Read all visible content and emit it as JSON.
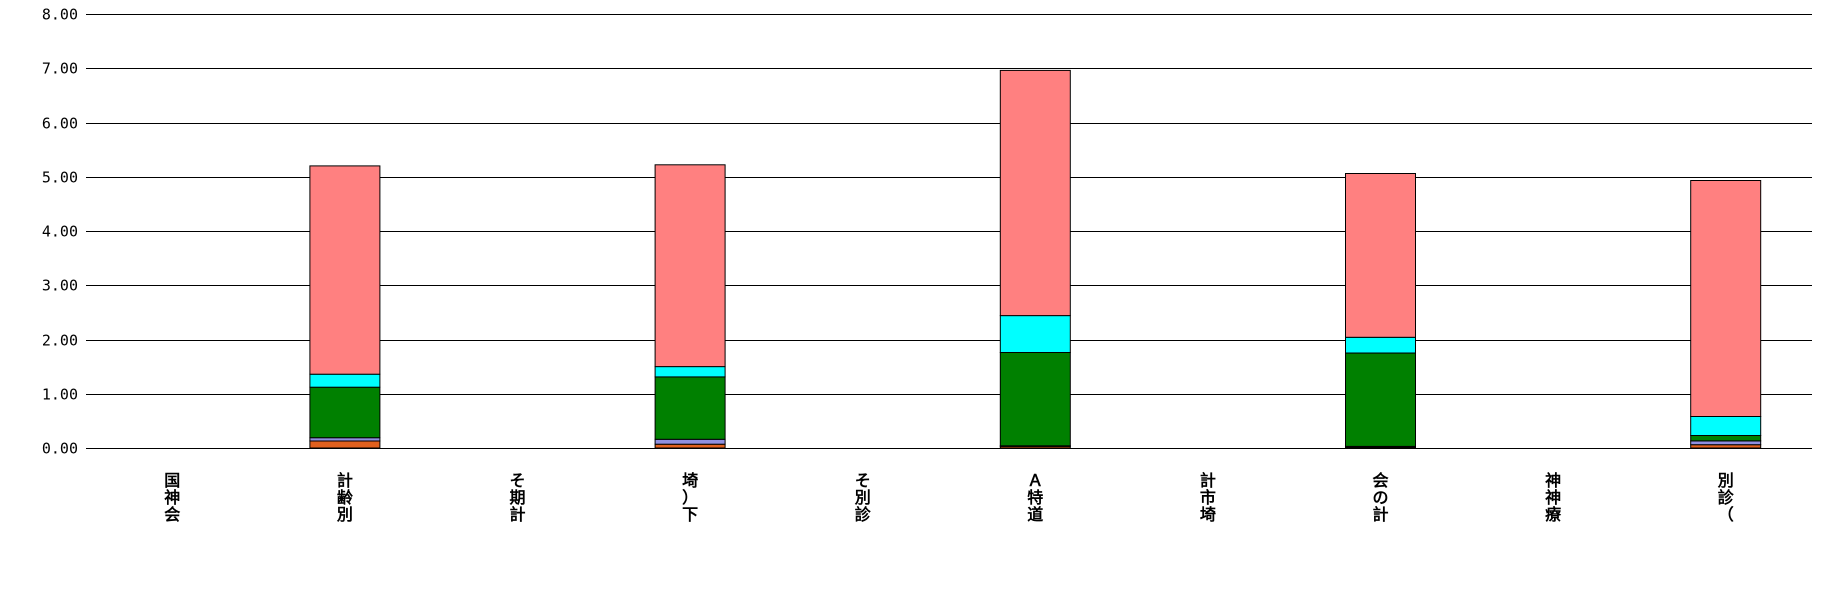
{
  "chart_data": {
    "type": "bar",
    "stacked": true,
    "ylim": [
      0,
      8
    ],
    "yticks": [
      "0.00",
      "1.00",
      "2.00",
      "3.00",
      "4.00",
      "5.00",
      "6.00",
      "7.00",
      "8.00"
    ],
    "grid": true,
    "categories": [
      [
        "国",
        "神",
        "会"
      ],
      [
        "計",
        "齢",
        "別"
      ],
      [
        "そ",
        "期",
        "計"
      ],
      [
        "埼",
        "）",
        "下"
      ],
      [
        "そ",
        "別",
        "診"
      ],
      [
        "Ａ",
        "特",
        "道"
      ],
      [
        "計",
        "市",
        "埼"
      ],
      [
        "会",
        "の",
        "計"
      ],
      [
        "神",
        "神",
        "療"
      ],
      [
        "別",
        "診",
        "（"
      ]
    ],
    "series": [
      {
        "color": "#e0601e",
        "values": [
          0,
          0.13,
          0,
          0.07,
          0,
          0.03,
          0,
          0.02,
          0,
          0.06
        ]
      },
      {
        "color": "#9090e0",
        "values": [
          0,
          0.06,
          0,
          0.09,
          0,
          0.01,
          0,
          0.01,
          0,
          0.07
        ]
      },
      {
        "color": "#008000",
        "values": [
          0,
          0.93,
          0,
          1.15,
          0,
          1.72,
          0,
          1.72,
          0,
          0.1
        ]
      },
      {
        "color": "#00ffff",
        "values": [
          0,
          0.24,
          0,
          0.19,
          0,
          0.68,
          0,
          0.29,
          0,
          0.35
        ]
      },
      {
        "color": "#ff8080",
        "values": [
          0,
          3.84,
          0,
          3.72,
          0,
          4.52,
          0,
          3.02,
          0,
          4.35
        ]
      }
    ]
  }
}
